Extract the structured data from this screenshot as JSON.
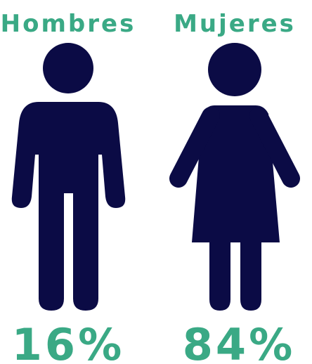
{
  "groups": [
    {
      "label": "Hombres",
      "value": "16%"
    },
    {
      "label": "Mujeres",
      "value": "84%"
    }
  ]
}
